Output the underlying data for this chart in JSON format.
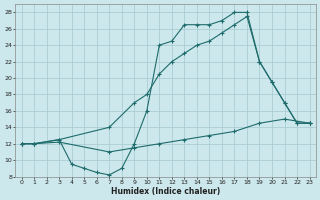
{
  "xlabel": "Humidex (Indice chaleur)",
  "bg_color": "#cde8ec",
  "grid_color": "#aacdd3",
  "line_color": "#1d6b6b",
  "xlim": [
    -0.5,
    23.5
  ],
  "ylim": [
    8,
    29
  ],
  "xticks": [
    0,
    1,
    2,
    3,
    4,
    5,
    6,
    7,
    8,
    9,
    10,
    11,
    12,
    13,
    14,
    15,
    16,
    17,
    18,
    19,
    20,
    21,
    22,
    23
  ],
  "yticks": [
    8,
    10,
    12,
    14,
    16,
    18,
    20,
    22,
    24,
    26,
    28
  ],
  "line1_x": [
    0,
    1,
    3,
    4,
    5,
    6,
    7,
    8,
    9,
    10,
    11,
    12,
    13,
    14,
    15,
    16,
    17,
    18,
    19,
    20,
    21,
    22,
    23
  ],
  "line1_y": [
    12,
    12,
    12.5,
    9.5,
    9,
    8.5,
    8.2,
    9,
    12,
    16,
    24,
    24.5,
    26.5,
    26.5,
    26.5,
    27,
    28,
    28,
    22,
    19.5,
    17,
    14.5,
    14.5
  ],
  "line2_x": [
    0,
    1,
    3,
    7,
    9,
    10,
    11,
    12,
    13,
    14,
    15,
    16,
    17,
    18,
    19,
    20,
    21,
    22,
    23
  ],
  "line2_y": [
    12,
    12,
    12.5,
    14,
    17,
    18,
    20.5,
    22,
    23,
    24,
    24.5,
    25.5,
    26.5,
    27.5,
    22,
    19.5,
    17,
    14.5,
    14.5
  ],
  "line3_x": [
    0,
    1,
    3,
    7,
    9,
    11,
    13,
    15,
    17,
    19,
    21,
    23
  ],
  "line3_y": [
    12,
    12,
    12.2,
    11,
    11.5,
    12,
    12.5,
    13,
    13.5,
    14.5,
    15,
    14.5
  ]
}
